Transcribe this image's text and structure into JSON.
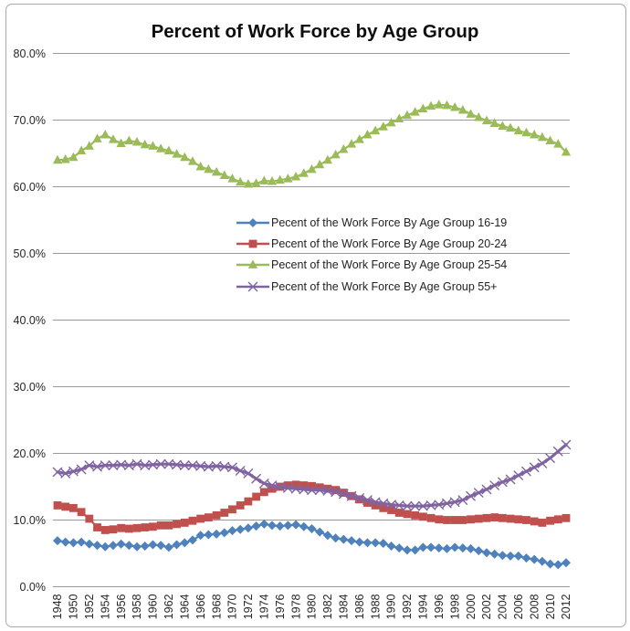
{
  "chart_data": {
    "type": "line",
    "title": "Percent of Work Force by Age Group",
    "xlabel": "",
    "ylabel": "",
    "ylim": [
      0,
      80
    ],
    "y_tick_step": 10,
    "y_tick_labels": [
      "0.0%",
      "10.0%",
      "20.0%",
      "30.0%",
      "40.0%",
      "50.0%",
      "60.0%",
      "70.0%",
      "80.0%"
    ],
    "x_label_every": 2,
    "grid": true,
    "grid_color": "#999999",
    "background": "#FFFFFF",
    "legend_position": "inside-center-left",
    "years": [
      1948,
      1949,
      1950,
      1951,
      1952,
      1953,
      1954,
      1955,
      1956,
      1957,
      1958,
      1959,
      1960,
      1961,
      1962,
      1963,
      1964,
      1965,
      1966,
      1967,
      1968,
      1969,
      1970,
      1971,
      1972,
      1973,
      1974,
      1975,
      1976,
      1977,
      1978,
      1979,
      1980,
      1981,
      1982,
      1983,
      1984,
      1985,
      1986,
      1987,
      1988,
      1989,
      1990,
      1991,
      1992,
      1993,
      1994,
      1995,
      1996,
      1997,
      1998,
      1999,
      2000,
      2001,
      2002,
      2003,
      2004,
      2005,
      2006,
      2007,
      2008,
      2009,
      2010,
      2011,
      2012
    ],
    "series": [
      {
        "name": "Pecent of the Work Force By Age Group 16-19",
        "color": "#4F81BD",
        "marker": "diamond",
        "values": [
          6.9,
          6.7,
          6.6,
          6.7,
          6.4,
          6.2,
          6.0,
          6.2,
          6.4,
          6.2,
          6.0,
          6.1,
          6.3,
          6.2,
          5.9,
          6.3,
          6.6,
          7.0,
          7.7,
          7.8,
          7.9,
          8.1,
          8.4,
          8.6,
          8.8,
          9.1,
          9.4,
          9.2,
          9.1,
          9.2,
          9.3,
          9.0,
          8.7,
          8.2,
          7.7,
          7.3,
          7.1,
          6.9,
          6.7,
          6.6,
          6.6,
          6.5,
          6.1,
          5.8,
          5.5,
          5.5,
          5.9,
          5.9,
          5.8,
          5.7,
          5.9,
          5.8,
          5.7,
          5.4,
          5.1,
          4.9,
          4.7,
          4.6,
          4.6,
          4.3,
          4.1,
          3.8,
          3.4,
          3.3,
          3.6
        ]
      },
      {
        "name": "Pecent of the Work Force By Age Group 20-24",
        "color": "#C0504D",
        "marker": "square",
        "values": [
          12.2,
          12.0,
          11.8,
          11.2,
          10.2,
          8.9,
          8.5,
          8.6,
          8.8,
          8.7,
          8.8,
          8.9,
          9.0,
          9.2,
          9.2,
          9.4,
          9.6,
          9.9,
          10.2,
          10.4,
          10.7,
          11.1,
          11.6,
          12.2,
          12.8,
          13.5,
          14.2,
          14.7,
          15.0,
          15.2,
          15.3,
          15.2,
          15.1,
          14.9,
          14.7,
          14.5,
          14.1,
          13.6,
          13.1,
          12.6,
          12.2,
          11.8,
          11.5,
          11.1,
          10.9,
          10.7,
          10.5,
          10.3,
          10.1,
          10.0,
          10.0,
          10.0,
          10.1,
          10.2,
          10.3,
          10.4,
          10.3,
          10.2,
          10.1,
          10.0,
          9.8,
          9.6,
          9.9,
          10.1,
          10.3
        ]
      },
      {
        "name": "Pecent of the Work Force By Age Group 25-54",
        "color": "#9BBB59",
        "marker": "triangle",
        "values": [
          64.0,
          64.1,
          64.4,
          65.4,
          66.1,
          67.2,
          67.8,
          67.1,
          66.5,
          66.9,
          66.7,
          66.3,
          66.1,
          65.7,
          65.4,
          64.9,
          64.4,
          63.8,
          63.0,
          62.6,
          62.2,
          61.7,
          61.2,
          60.7,
          60.4,
          60.5,
          60.9,
          60.8,
          61.0,
          61.2,
          61.5,
          62.0,
          62.6,
          63.3,
          64.0,
          64.8,
          65.6,
          66.4,
          67.1,
          67.8,
          68.4,
          69.0,
          69.6,
          70.2,
          70.7,
          71.2,
          71.7,
          72.1,
          72.3,
          72.2,
          71.9,
          71.5,
          70.9,
          70.4,
          69.9,
          69.5,
          69.1,
          68.8,
          68.4,
          68.1,
          67.8,
          67.4,
          66.9,
          66.4,
          65.2
        ]
      },
      {
        "name": "Pecent of the Work Force By Age Group 55+",
        "color": "#8064A2",
        "marker": "x",
        "values": [
          17.2,
          17.0,
          17.3,
          17.6,
          18.2,
          18.0,
          18.2,
          18.2,
          18.3,
          18.2,
          18.4,
          18.2,
          18.3,
          18.4,
          18.4,
          18.3,
          18.2,
          18.2,
          18.1,
          18.0,
          18.1,
          18.0,
          17.9,
          17.4,
          17.0,
          16.2,
          15.5,
          15.2,
          15.0,
          14.8,
          14.7,
          14.6,
          14.5,
          14.5,
          14.4,
          14.2,
          13.9,
          13.6,
          13.3,
          13.0,
          12.7,
          12.5,
          12.3,
          12.2,
          12.1,
          12.1,
          12.1,
          12.2,
          12.3,
          12.5,
          12.7,
          13.0,
          13.6,
          14.1,
          14.6,
          15.2,
          15.7,
          16.1,
          16.7,
          17.3,
          17.9,
          18.5,
          19.3,
          20.3,
          21.3
        ]
      }
    ]
  }
}
